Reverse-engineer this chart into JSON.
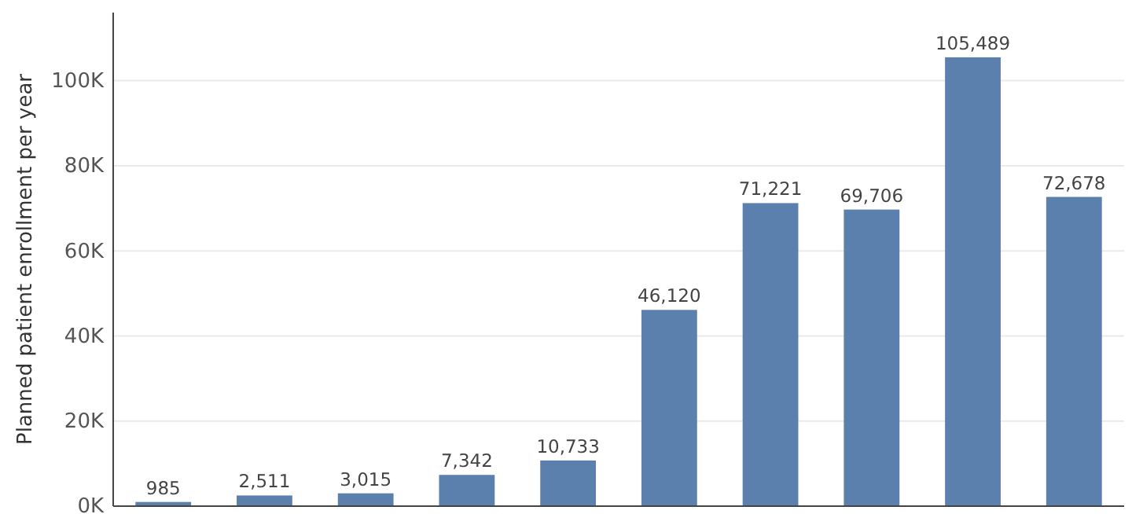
{
  "chart_data": {
    "type": "bar",
    "ylabel": "Planned patient enrollment per year",
    "categories": [
      null,
      null,
      null,
      null,
      null,
      null,
      null,
      null,
      null,
      null
    ],
    "values": [
      985,
      2511,
      3015,
      7342,
      10733,
      46120,
      71221,
      69706,
      105489,
      72678
    ],
    "value_labels": [
      "985",
      "2,511",
      "3,015",
      "7,342",
      "10,733",
      "46,120",
      "71,221",
      "69,706",
      "105,489",
      "72,678"
    ],
    "color": "#5b80ad",
    "grid": "y",
    "ylim": [
      0,
      116000
    ],
    "yticks": [
      {
        "value": 0,
        "label": "0K"
      },
      {
        "value": 20000,
        "label": "20K"
      },
      {
        "value": 40000,
        "label": "40K"
      },
      {
        "value": 60000,
        "label": "60K"
      },
      {
        "value": 80000,
        "label": "80K"
      },
      {
        "value": 100000,
        "label": "100K"
      }
    ]
  }
}
